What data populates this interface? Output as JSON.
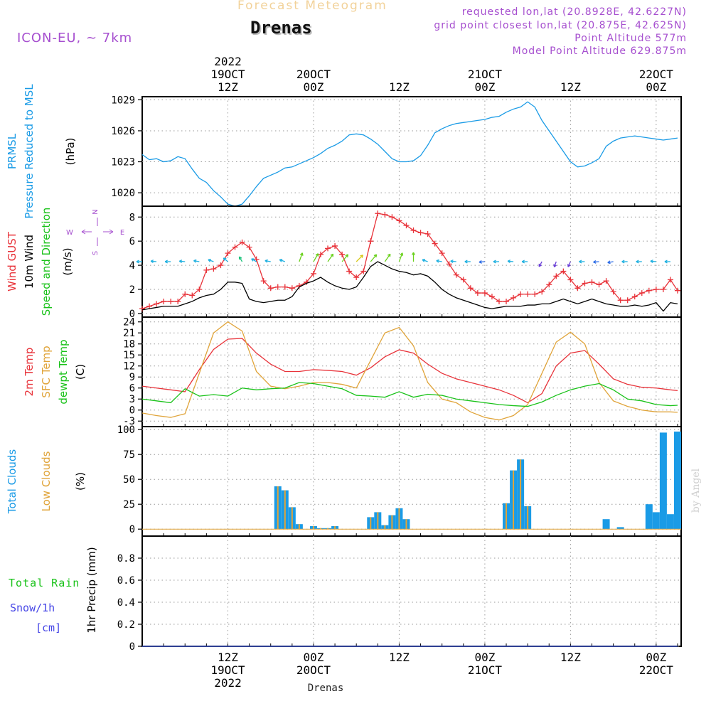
{
  "header": {
    "title": "Forecast Meteogram",
    "station": "Drenas",
    "model": "ICON-EU, ~ 7km",
    "requested": "requested lon,lat (20.8928E, 42.6227N)",
    "grid_point": "grid point closest lon,lat (20.875E, 42.625N)",
    "point_altitude": "Point Altitude 577m",
    "model_altitude": "Model Point Altitude 629.875m"
  },
  "footer": {
    "station": "Drenas",
    "credit": "by Angel"
  },
  "time_axis": {
    "ticks": [
      {
        "h": 12,
        "lines": [
          "12Z",
          "19OCT",
          "2022"
        ]
      },
      {
        "h": 24,
        "lines": [
          "00Z",
          "20OCT"
        ]
      },
      {
        "h": 36,
        "lines": [
          "12Z"
        ]
      },
      {
        "h": 48,
        "lines": [
          "00Z",
          "21OCT"
        ]
      },
      {
        "h": 60,
        "lines": [
          "12Z"
        ]
      },
      {
        "h": 72,
        "lines": [
          "00Z",
          "22OCT"
        ]
      }
    ],
    "top_ticks": [
      {
        "h": 12,
        "lines": [
          "2022",
          "19OCT",
          "12Z"
        ]
      },
      {
        "h": 24,
        "lines": [
          "20OCT",
          "00Z"
        ]
      },
      {
        "h": 36,
        "lines": [
          "12Z"
        ]
      },
      {
        "h": 48,
        "lines": [
          "21OCT",
          "00Z"
        ]
      },
      {
        "h": 60,
        "lines": [
          "12Z"
        ]
      },
      {
        "h": 72,
        "lines": [
          "22OCT",
          "00Z"
        ]
      }
    ]
  },
  "colors": {
    "pressure": "#1a9be6",
    "gust": "#e8333a",
    "wind": "#000000",
    "dir": "#19c219",
    "temp": "#e8333a",
    "sfc": "#e0a43a",
    "dew": "#19c219",
    "total_clouds": "#1a9be6",
    "low_clouds": "#e0a43a",
    "rain": "#19c219",
    "snow": "#4646e6",
    "purple": "#a64fcf"
  },
  "chart_data": [
    {
      "type": "line",
      "panel": "pressure",
      "ylabel": [
        "PRMSL",
        "Pressure Reduced to MSL",
        "(hPa)"
      ],
      "yticks": [
        1020,
        1023,
        1026,
        1029
      ],
      "ylim": [
        1018.7,
        1029.3
      ],
      "grid": true,
      "series": [
        {
          "key": "pressure",
          "x": [
            0,
            1,
            2,
            3,
            4,
            5,
            6,
            7,
            8,
            9,
            10,
            11,
            12,
            13,
            14,
            15,
            16,
            17,
            18,
            19,
            20,
            21,
            22,
            23,
            24,
            25,
            26,
            27,
            28,
            29,
            30,
            31,
            32,
            33,
            34,
            35,
            36,
            37,
            38,
            39,
            40,
            41,
            42,
            43,
            44,
            45,
            46,
            47,
            48,
            49,
            50,
            51,
            52,
            53,
            54,
            55,
            56,
            57,
            58,
            59,
            60,
            61,
            62,
            63,
            64,
            65,
            66,
            67,
            68,
            69,
            70,
            71,
            72,
            73,
            74,
            75
          ],
          "values": [
            1023.7,
            1023.2,
            1023.3,
            1023.0,
            1023.1,
            1023.5,
            1023.3,
            1022.3,
            1021.4,
            1021.0,
            1020.2,
            1019.6,
            1018.9,
            1018.7,
            1018.9,
            1019.7,
            1020.6,
            1021.4,
            1021.7,
            1022.0,
            1022.4,
            1022.5,
            1022.8,
            1023.1,
            1023.4,
            1023.8,
            1024.3,
            1024.6,
            1025.0,
            1025.6,
            1025.7,
            1025.6,
            1025.2,
            1024.7,
            1024.0,
            1023.3,
            1023.0,
            1023.0,
            1023.1,
            1023.6,
            1024.6,
            1025.8,
            1026.2,
            1026.5,
            1026.7,
            1026.8,
            1026.9,
            1027.0,
            1027.1,
            1027.3,
            1027.4,
            1027.8,
            1028.1,
            1028.3,
            1028.8,
            1028.3,
            1027.0,
            1026.0,
            1025.0,
            1024.0,
            1023.0,
            1022.5,
            1022.6,
            1022.9,
            1023.3,
            1024.5,
            1025.0,
            1025.3,
            1025.4,
            1025.5,
            1025.4,
            1025.3,
            1025.2,
            1025.1,
            1025.2,
            1025.3
          ]
        }
      ]
    },
    {
      "type": "line",
      "panel": "wind",
      "ylabel": [
        "Wind GUST",
        "10m Wind",
        "Speed and Direction",
        "(m/s)"
      ],
      "compass": {
        "n": "N",
        "s": "S",
        "w": "W",
        "e": "E"
      },
      "yticks": [
        0,
        2,
        4,
        6,
        8
      ],
      "ylim": [
        -0.3,
        8.9
      ],
      "grid": true,
      "series": [
        {
          "key": "gust",
          "markers": "plus",
          "x": [
            0,
            1,
            2,
            3,
            4,
            5,
            6,
            7,
            8,
            9,
            10,
            11,
            12,
            13,
            14,
            15,
            16,
            17,
            18,
            19,
            20,
            21,
            22,
            23,
            24,
            25,
            26,
            27,
            28,
            29,
            30,
            31,
            32,
            33,
            34,
            35,
            36,
            37,
            38,
            39,
            40,
            41,
            42,
            43,
            44,
            45,
            46,
            47,
            48,
            49,
            50,
            51,
            52,
            53,
            54,
            55,
            56,
            57,
            58,
            59,
            60,
            61,
            62,
            63,
            64,
            65,
            66,
            67,
            68,
            69,
            70,
            71,
            72,
            73,
            74,
            75
          ],
          "values": [
            0.4,
            0.6,
            0.8,
            1.0,
            1.0,
            1.0,
            1.6,
            1.5,
            2.0,
            3.6,
            3.7,
            4.0,
            5.0,
            5.5,
            5.9,
            5.5,
            4.5,
            2.7,
            2.1,
            2.2,
            2.2,
            2.1,
            2.3,
            2.6,
            3.3,
            4.9,
            5.4,
            5.6,
            4.9,
            3.5,
            3.0,
            3.5,
            6.0,
            8.3,
            8.2,
            8.0,
            7.7,
            7.3,
            6.9,
            6.7,
            6.6,
            5.8,
            5.0,
            4.1,
            3.2,
            2.8,
            2.1,
            1.7,
            1.7,
            1.4,
            1.0,
            1.0,
            1.3,
            1.6,
            1.6,
            1.6,
            1.8,
            2.4,
            3.1,
            3.5,
            2.8,
            2.1,
            2.5,
            2.6,
            2.4,
            2.7,
            1.8,
            1.1,
            1.1,
            1.4,
            1.7,
            1.9,
            2.0,
            2.0,
            2.8,
            1.9
          ]
        },
        {
          "key": "wind",
          "x": [
            0,
            1,
            2,
            3,
            4,
            5,
            6,
            7,
            8,
            9,
            10,
            11,
            12,
            13,
            14,
            15,
            16,
            17,
            18,
            19,
            20,
            21,
            22,
            23,
            24,
            25,
            26,
            27,
            28,
            29,
            30,
            31,
            32,
            33,
            34,
            35,
            36,
            37,
            38,
            39,
            40,
            41,
            42,
            43,
            44,
            45,
            46,
            47,
            48,
            49,
            50,
            51,
            52,
            53,
            54,
            55,
            56,
            57,
            58,
            59,
            60,
            61,
            62,
            63,
            64,
            65,
            66,
            67,
            68,
            69,
            70,
            71,
            72,
            73,
            74,
            75
          ],
          "values": [
            0.3,
            0.4,
            0.5,
            0.6,
            0.6,
            0.6,
            0.8,
            1.0,
            1.3,
            1.5,
            1.6,
            2.0,
            2.6,
            2.6,
            2.5,
            1.2,
            1.0,
            0.9,
            1.0,
            1.1,
            1.1,
            1.4,
            2.2,
            2.5,
            2.7,
            3.0,
            2.6,
            2.3,
            2.1,
            2.0,
            2.2,
            3.0,
            3.9,
            4.3,
            4.0,
            3.7,
            3.5,
            3.4,
            3.2,
            3.3,
            3.1,
            2.6,
            2.0,
            1.6,
            1.3,
            1.1,
            0.9,
            0.7,
            0.5,
            0.4,
            0.5,
            0.6,
            0.6,
            0.6,
            0.7,
            0.7,
            0.8,
            0.8,
            1.0,
            1.2,
            1.0,
            0.8,
            1.0,
            1.2,
            1.0,
            0.8,
            0.7,
            0.6,
            0.6,
            0.7,
            0.6,
            0.7,
            0.9,
            0.2,
            0.9,
            0.8
          ]
        }
      ],
      "direction_arrows": {
        "y_level": 4.3,
        "x": [
          0,
          2,
          4,
          6,
          8,
          10,
          12,
          14,
          16,
          18,
          20,
          22,
          24,
          26,
          28,
          30,
          32,
          34,
          36,
          38,
          40,
          42,
          44,
          46,
          48,
          50,
          52,
          54,
          56,
          58,
          60,
          62,
          64,
          66,
          68,
          70,
          72,
          74
        ],
        "dir_deg": [
          90,
          95,
          90,
          95,
          100,
          110,
          130,
          150,
          120,
          100,
          110,
          200,
          210,
          215,
          220,
          225,
          220,
          215,
          200,
          180,
          110,
          100,
          95,
          90,
          85,
          90,
          95,
          90,
          30,
          20,
          25,
          90,
          85,
          80,
          90,
          90,
          95,
          90
        ]
      }
    },
    {
      "type": "line",
      "panel": "temperature",
      "ylabel": [
        "2m Temp",
        "SFC Temp",
        "dewpt Temp",
        "(C)"
      ],
      "yticks": [
        -3,
        0,
        3,
        6,
        9,
        12,
        15,
        18,
        21,
        24
      ],
      "ylim": [
        -4.5,
        25.3
      ],
      "grid": true,
      "series": [
        {
          "key": "temp",
          "x": [
            0,
            2,
            4,
            6,
            8,
            10,
            12,
            14,
            16,
            18,
            20,
            22,
            24,
            26,
            28,
            30,
            32,
            34,
            36,
            38,
            40,
            42,
            44,
            46,
            48,
            50,
            52,
            54,
            56,
            58,
            60,
            62,
            64,
            66,
            68,
            70,
            72,
            74,
            75
          ],
          "values": [
            6.5,
            6.0,
            5.5,
            5.0,
            11.0,
            16.5,
            19.3,
            19.5,
            15.5,
            12.5,
            10.5,
            10.5,
            11.0,
            10.8,
            10.5,
            9.5,
            11.5,
            14.5,
            16.4,
            15.5,
            12.5,
            10.0,
            8.5,
            7.5,
            6.5,
            5.5,
            4.0,
            2.0,
            4.5,
            12.0,
            15.5,
            16.2,
            12.5,
            8.5,
            7.0,
            6.2,
            6.0,
            5.5,
            5.3
          ]
        },
        {
          "key": "sfc",
          "x": [
            0,
            2,
            4,
            6,
            8,
            10,
            12,
            14,
            16,
            18,
            20,
            22,
            24,
            26,
            28,
            30,
            32,
            34,
            36,
            38,
            40,
            42,
            44,
            46,
            48,
            50,
            52,
            54,
            56,
            58,
            60,
            62,
            64,
            66,
            68,
            70,
            72,
            74,
            75
          ],
          "values": [
            -0.8,
            -1.5,
            -2.0,
            -1.0,
            10.0,
            21.0,
            24.0,
            21.5,
            10.5,
            6.5,
            5.8,
            6.5,
            7.5,
            7.5,
            7.0,
            6.0,
            13.5,
            21.0,
            22.5,
            17.5,
            7.5,
            3.0,
            2.0,
            -0.5,
            -2.0,
            -2.7,
            -1.5,
            1.5,
            10.0,
            18.5,
            21.2,
            18.0,
            7.5,
            2.5,
            1.0,
            0.0,
            -0.5,
            -0.5,
            -0.6
          ]
        },
        {
          "key": "dew",
          "x": [
            0,
            2,
            4,
            6,
            8,
            10,
            12,
            14,
            16,
            18,
            20,
            22,
            24,
            26,
            28,
            30,
            32,
            34,
            36,
            38,
            40,
            42,
            44,
            46,
            48,
            50,
            52,
            54,
            56,
            58,
            60,
            62,
            64,
            66,
            68,
            70,
            72,
            74,
            75
          ],
          "values": [
            3.0,
            2.5,
            2.0,
            5.8,
            3.8,
            4.2,
            3.8,
            6.0,
            5.5,
            5.8,
            6.0,
            7.5,
            7.2,
            6.5,
            5.8,
            4.0,
            3.8,
            3.5,
            5.0,
            3.5,
            4.3,
            4.0,
            3.0,
            2.5,
            2.0,
            1.5,
            1.2,
            1.0,
            2.2,
            4.0,
            5.5,
            6.5,
            7.2,
            5.5,
            3.0,
            2.5,
            1.5,
            1.2,
            1.3
          ]
        }
      ]
    },
    {
      "type": "bar",
      "panel": "clouds",
      "ylabel": [
        "Total Clouds",
        "Low Clouds",
        "(%)"
      ],
      "yticks": [
        0,
        25,
        50,
        75,
        100
      ],
      "ylim": [
        -7,
        103
      ],
      "grid": true,
      "x": [
        19,
        20,
        21,
        22,
        24,
        25,
        26,
        27,
        32,
        33,
        34,
        35,
        36,
        37,
        51,
        52,
        53,
        54,
        65,
        67,
        71,
        72,
        73,
        74,
        75
      ],
      "series": [
        {
          "key": "total_clouds",
          "name": "Total Clouds",
          "values": [
            43,
            39,
            22,
            5,
            3,
            1,
            1,
            3,
            12,
            17,
            4,
            14,
            21,
            10,
            26,
            59,
            70,
            23,
            10,
            2,
            25,
            17,
            97,
            15,
            98
          ]
        },
        {
          "key": "low_clouds",
          "name": "Low Clouds",
          "values": [
            43,
            39,
            22,
            5,
            3,
            1,
            1,
            3,
            12,
            17,
            4,
            14,
            21,
            10,
            26,
            59,
            70,
            23,
            0,
            0,
            0,
            0,
            0,
            0,
            0
          ]
        }
      ]
    },
    {
      "type": "line",
      "panel": "precip",
      "ylabel": [
        "1hr Precip (mm)"
      ],
      "legend": {
        "rain": "Total Rain",
        "snow": "Snow/1h",
        "snow_unit": "[cm]"
      },
      "yticks": [
        0,
        0.2,
        0.4,
        0.6,
        0.8
      ],
      "ylim": [
        0,
        1.0
      ],
      "grid": true,
      "series": [
        {
          "key": "rain",
          "name": "Total Rain",
          "x": [
            0,
            75
          ],
          "values": [
            0,
            0
          ]
        },
        {
          "key": "snow",
          "name": "Snow/1h",
          "x": [
            0,
            75
          ],
          "values": [
            0,
            0
          ]
        }
      ]
    }
  ]
}
